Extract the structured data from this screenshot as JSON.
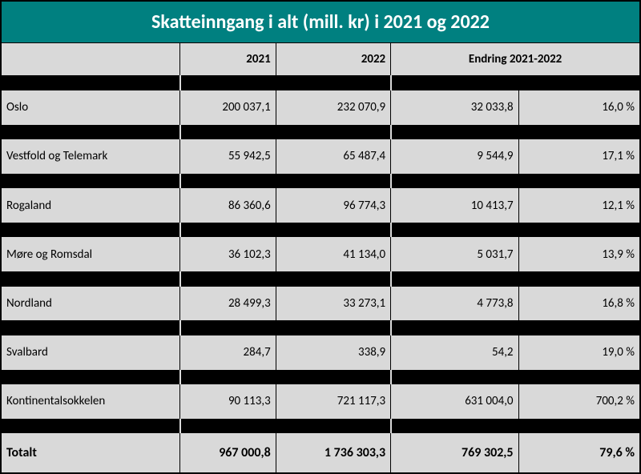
{
  "title": "Skatteinngang i alt (mill. kr) i 2021 og 2022",
  "colors": {
    "header_bg": "#008080",
    "header_fg": "#ffffff",
    "cell_bg": "#d9d9d9",
    "sep_bg": "#000000"
  },
  "header": {
    "y2021": "2021",
    "y2022": "2022",
    "change": "Endring 2021-2022"
  },
  "rows": [
    {
      "label": "Oslo",
      "y2021": "200 037,1",
      "y2022": "232 070,9",
      "diff": "32 033,8",
      "pct": "16,0 %"
    },
    {
      "label": "Vestfold og Telemark",
      "y2021": "55 942,5",
      "y2022": "65 487,4",
      "diff": "9 544,9",
      "pct": "17,1 %"
    },
    {
      "label": "Rogaland",
      "y2021": "86 360,6",
      "y2022": "96 774,3",
      "diff": "10 413,7",
      "pct": "12,1 %"
    },
    {
      "label": "Møre og Romsdal",
      "y2021": "36 102,3",
      "y2022": "41 134,0",
      "diff": "5 031,7",
      "pct": "13,9 %"
    },
    {
      "label": "Nordland",
      "y2021": "28 499,3",
      "y2022": "33 273,1",
      "diff": "4 773,8",
      "pct": "16,8 %"
    },
    {
      "label": "Svalbard",
      "y2021": "284,7",
      "y2022": "338,9",
      "diff": "54,2",
      "pct": "19,0 %"
    },
    {
      "label": "Kontinentalsokkelen",
      "y2021": "90 113,3",
      "y2022": "721 117,3",
      "diff": "631 004,0",
      "pct": "700,2 %"
    }
  ],
  "total": {
    "label": "Totalt",
    "y2021": "967 000,8",
    "y2022": "1 736 303,3",
    "diff": "769 302,5",
    "pct": "79,6 %"
  }
}
